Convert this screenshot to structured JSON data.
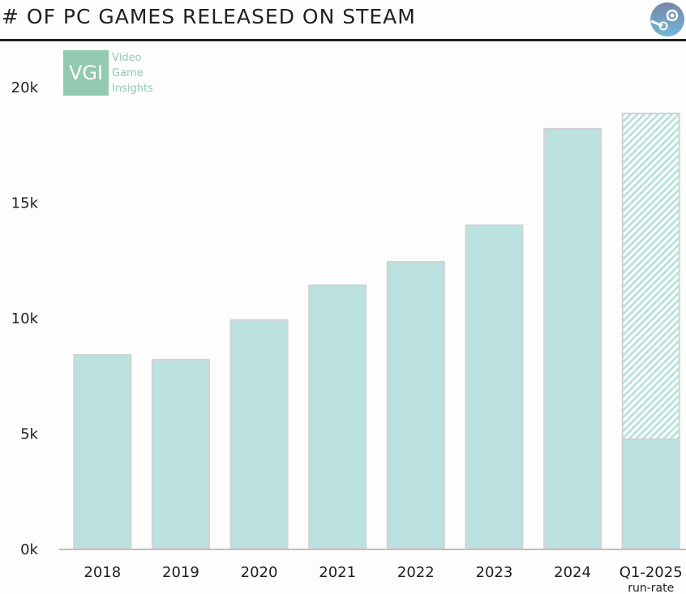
{
  "header": {
    "title": "# OF PC GAMES RELEASED ON STEAM",
    "logo_icon": "steam-icon"
  },
  "watermark": {
    "abbr": "VGI",
    "lines": [
      "Video",
      "Game",
      "Insights"
    ]
  },
  "colors": {
    "bar_fill": "#bae1e0",
    "bar_stroke": "#d2d2d2",
    "axis": "#bfbfbf",
    "vgi_green": "#93c9b1",
    "text": "#231f20"
  },
  "chart_data": {
    "type": "bar",
    "title": "# OF PC GAMES RELEASED ON STEAM",
    "xlabel": "",
    "ylabel": "",
    "categories": [
      "2018",
      "2019",
      "2020",
      "2021",
      "2022",
      "2023",
      "2024",
      "Q1-2025"
    ],
    "category_sublabels": [
      "",
      "",
      "",
      "",
      "",
      "",
      "",
      "run-rate"
    ],
    "series": [
      {
        "name": "Games released",
        "values": [
          8.39,
          8.18,
          9.89,
          11.4,
          12.42,
          14.0,
          18.18,
          4.74
        ]
      },
      {
        "name": "Run-rate projection (hatched)",
        "values": [
          null,
          null,
          null,
          null,
          null,
          null,
          null,
          18.84
        ]
      }
    ],
    "units": "thousands",
    "yticks": [
      0,
      5,
      10,
      15,
      20
    ],
    "ytick_labels": [
      "0k",
      "5k",
      "10k",
      "15k",
      "20k"
    ],
    "ylim": [
      0,
      20
    ],
    "grid": false,
    "legend": "none"
  }
}
